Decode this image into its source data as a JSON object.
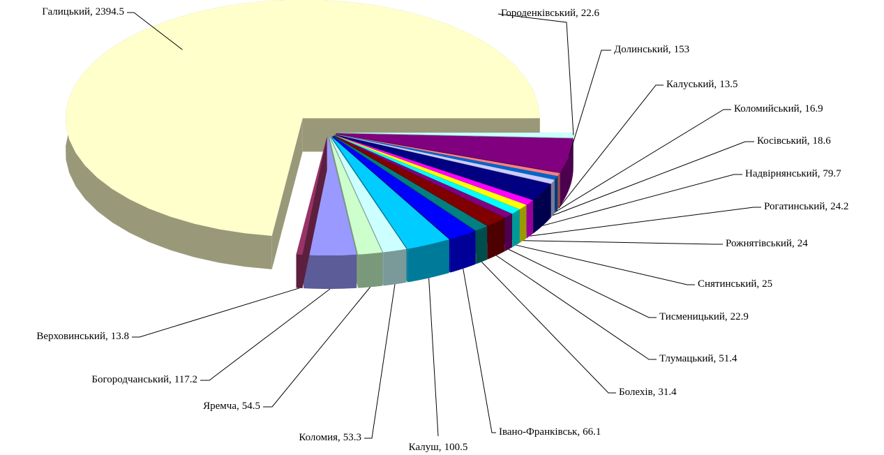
{
  "chart_data": {
    "type": "pie3d",
    "categories": [
      "Галицький,",
      "Городенківський,",
      "Долинський,",
      "Калуський,",
      "Коломийський,",
      "Косівський,",
      "Надвірнянський,",
      "Рогатинський,",
      "Рожнятівський,",
      "Снятинський,",
      "Тисменицький,",
      "Тлумацький,",
      "Болехів,",
      "Івано-Франківськ,",
      "Калуш,",
      "Коломия,",
      "Яремча,",
      "Богородчанський,",
      "Верховинський,"
    ],
    "values": [
      2394.5,
      22.6,
      153,
      13.5,
      16.9,
      18.6,
      79.7,
      24.2,
      24,
      25,
      22.9,
      51.4,
      31.4,
      66.1,
      100.5,
      53.3,
      54.5,
      117.2,
      13.8
    ],
    "colors": [
      "#FFFFCC",
      "#CCFFFF",
      "#800080",
      "#FF8080",
      "#0066CC",
      "#CCCCFF",
      "#000080",
      "#FF00FF",
      "#FFFF00",
      "#00FFFF",
      "#800080",
      "#800000",
      "#008080",
      "#0000FF",
      "#00CCFF",
      "#CCFFFF",
      "#CCFFCC",
      "#9999FF",
      "#993366"
    ]
  }
}
